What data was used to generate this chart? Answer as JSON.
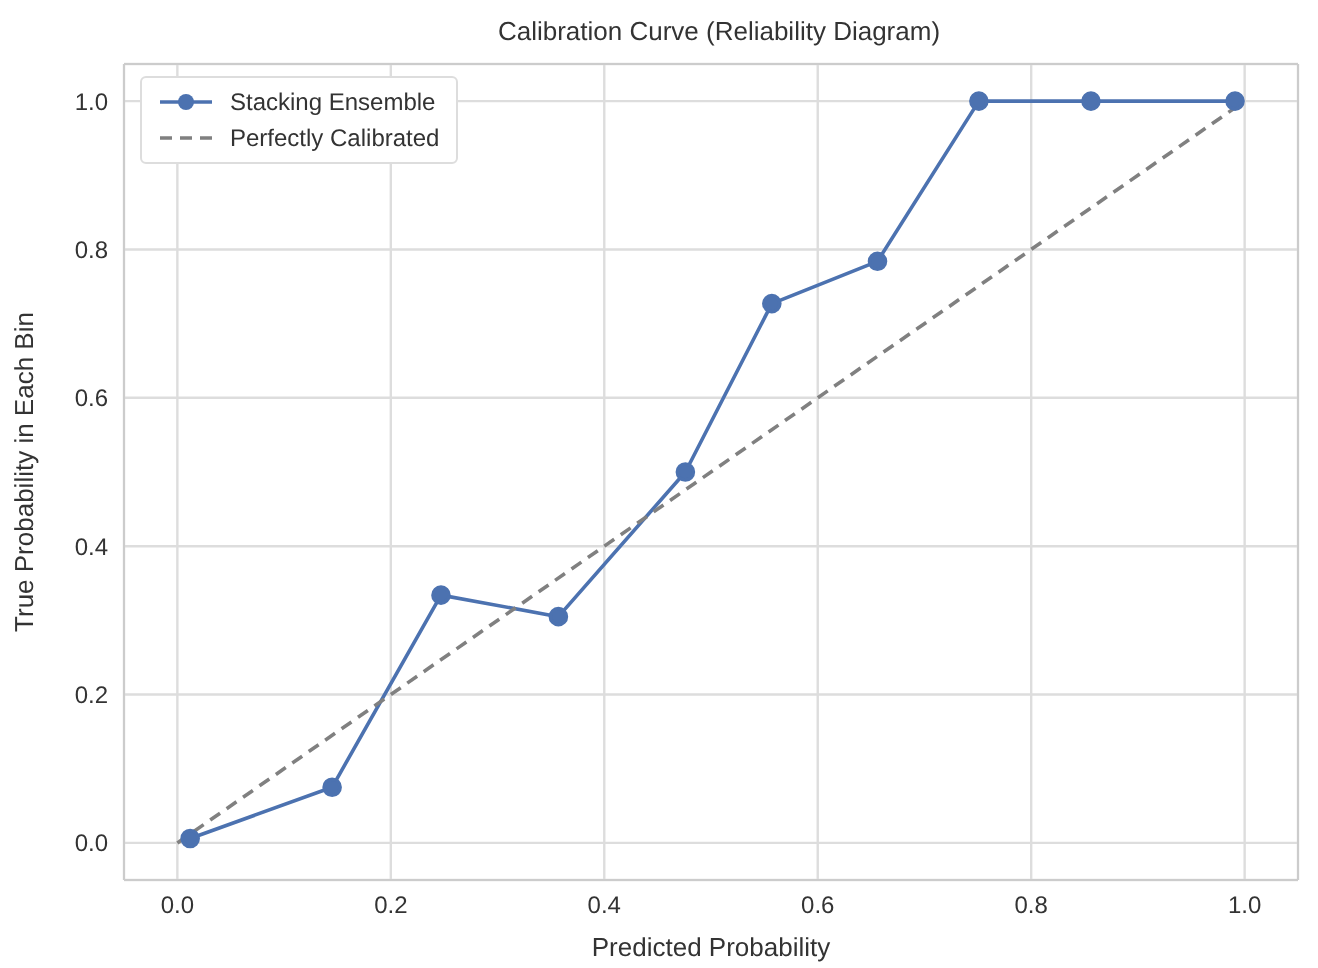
{
  "chart_data": {
    "type": "line",
    "title": "Calibration Curve (Reliability Diagram)",
    "xlabel": "Predicted Probability",
    "ylabel": "True Probability in Each Bin",
    "xlim": [
      -0.05,
      1.05
    ],
    "ylim": [
      -0.05,
      1.05
    ],
    "xticks": [
      {
        "value": 0,
        "label": "0.0"
      },
      {
        "value": 0.2,
        "label": "0.2"
      },
      {
        "value": 0.4,
        "label": "0.4"
      },
      {
        "value": 0.6,
        "label": "0.6"
      },
      {
        "value": 0.8,
        "label": "0.8"
      },
      {
        "value": 1,
        "label": "1.0"
      }
    ],
    "yticks": [
      {
        "value": 0,
        "label": "0.0"
      },
      {
        "value": 0.2,
        "label": "0.2"
      },
      {
        "value": 0.4,
        "label": "0.4"
      },
      {
        "value": 0.6,
        "label": "0.6"
      },
      {
        "value": 0.8,
        "label": "0.8"
      },
      {
        "value": 1,
        "label": "1.0"
      }
    ],
    "grid": true,
    "legend": "top left",
    "series": [
      {
        "name": "Stacking Ensemble",
        "color": "#4c72b0",
        "marker": "circle",
        "line_style": "solid",
        "x": [
          0.012,
          0.145,
          0.247,
          0.357,
          0.476,
          0.557,
          0.656,
          0.751,
          0.856,
          0.991
        ],
        "values": [
          0.006,
          0.075,
          0.334,
          0.305,
          0.5,
          0.727,
          0.784,
          1,
          1,
          1
        ]
      },
      {
        "name": "Perfectly Calibrated",
        "color": "#808080",
        "marker": "none",
        "line_style": "dashed",
        "x": [
          0,
          1
        ],
        "values": [
          0,
          1
        ]
      }
    ]
  }
}
